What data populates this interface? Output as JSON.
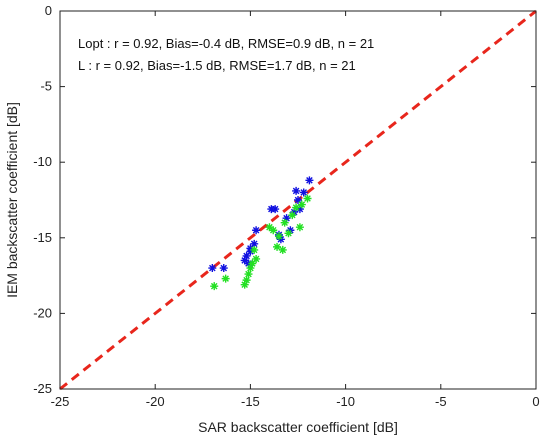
{
  "chart_data": {
    "type": "scatter",
    "xlabel": "SAR backscatter coefficient [dB]",
    "ylabel": "IEM backscatter coefficient [dB]",
    "xlim": [
      -25,
      0
    ],
    "ylim": [
      -25,
      0
    ],
    "xticks": [
      -25,
      -20,
      -15,
      -10,
      -5,
      0
    ],
    "yticks": [
      -25,
      -20,
      -15,
      -10,
      -5,
      0
    ],
    "grid": false,
    "annotations": [
      "Lopt : r = 0.92, Bias=-0.4 dB, RMSE=0.9 dB, n = 21",
      "L : r = 0.92, Bias=-1.5 dB, RMSE=1.7 dB, n = 21"
    ],
    "reference_line": {
      "x": [
        -25,
        0
      ],
      "y": [
        -25,
        0
      ],
      "color": "#e8261c",
      "style": "dashed"
    },
    "series": [
      {
        "color": "#1010e0",
        "marker": "asterisk",
        "points": [
          [
            -17.0,
            -17.0
          ],
          [
            -16.4,
            -17.0
          ],
          [
            -15.3,
            -16.5
          ],
          [
            -15.2,
            -16.2
          ],
          [
            -15.0,
            -15.7
          ],
          [
            -14.8,
            -15.4
          ],
          [
            -14.7,
            -14.5
          ],
          [
            -13.9,
            -13.1
          ],
          [
            -13.7,
            -13.1
          ],
          [
            -13.5,
            -14.8
          ],
          [
            -13.4,
            -15.1
          ],
          [
            -13.1,
            -13.7
          ],
          [
            -12.9,
            -14.5
          ],
          [
            -12.7,
            -13.3
          ],
          [
            -12.6,
            -11.9
          ],
          [
            -12.5,
            -12.5
          ],
          [
            -12.4,
            -13.1
          ],
          [
            -12.2,
            -12.0
          ],
          [
            -11.9,
            -11.2
          ],
          [
            -15.1,
            -16.7
          ],
          [
            -15.0,
            -15.9
          ]
        ]
      },
      {
        "color": "#22e022",
        "marker": "asterisk",
        "points": [
          [
            -16.9,
            -18.2
          ],
          [
            -16.3,
            -17.7
          ],
          [
            -15.3,
            -18.1
          ],
          [
            -15.2,
            -17.8
          ],
          [
            -15.1,
            -17.4
          ],
          [
            -15.0,
            -17.0
          ],
          [
            -14.9,
            -16.7
          ],
          [
            -14.8,
            -15.8
          ],
          [
            -14.7,
            -16.4
          ],
          [
            -14.0,
            -14.3
          ],
          [
            -13.8,
            -14.5
          ],
          [
            -13.6,
            -15.6
          ],
          [
            -13.5,
            -14.9
          ],
          [
            -13.3,
            -15.8
          ],
          [
            -13.2,
            -14.0
          ],
          [
            -13.0,
            -14.7
          ],
          [
            -12.8,
            -13.5
          ],
          [
            -12.6,
            -13.0
          ],
          [
            -12.4,
            -14.3
          ],
          [
            -12.3,
            -12.8
          ],
          [
            -12.0,
            -12.4
          ]
        ]
      }
    ]
  }
}
